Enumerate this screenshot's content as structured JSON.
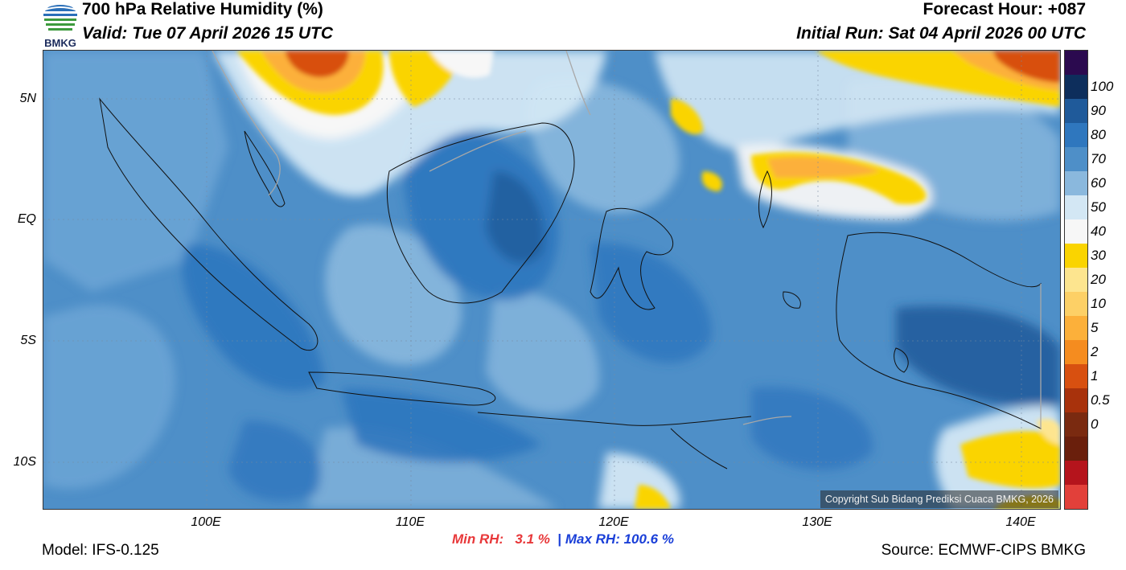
{
  "header": {
    "title": "700 hPa Relative Humidity (%)",
    "valid": "Valid: Tue 07 April 2026 15 UTC",
    "forecast_hour": "Forecast Hour: +087",
    "initial_run": "Initial Run: Sat 04 April 2026 00 UTC",
    "logo_text": "BMKG"
  },
  "axes": {
    "lat_labels": [
      "5N",
      "EQ",
      "5S",
      "10S"
    ],
    "lon_labels": [
      "100E",
      "110E",
      "120E",
      "130E",
      "140E"
    ]
  },
  "stats": {
    "min_label": "Min RH:",
    "min_value": "3.1 %",
    "separator": "|",
    "max_label": "Max RH:",
    "max_value": "100.6 %"
  },
  "footer": {
    "model": "Model: IFS-0.125",
    "source": "Source: ECMWF-CIPS BMKG",
    "copyright": "Copyright Sub Bidang Prediksi Cuaca BMKG, 2026"
  },
  "colorbar": {
    "labels": [
      "100",
      "90",
      "80",
      "70",
      "60",
      "50",
      "40",
      "30",
      "20",
      "10",
      "5",
      "2",
      "1",
      "0.5",
      "0"
    ],
    "colors": [
      "#2b0a4f",
      "#0d2e5c",
      "#1f5a9a",
      "#2f77be",
      "#4e8fc8",
      "#8ab8dd",
      "#d3e7f4",
      "#f7f7f7",
      "#fad400",
      "#fde58f",
      "#fdd066",
      "#fcb03a",
      "#f58c1f",
      "#d85010",
      "#a8320c",
      "#7a2a10",
      "#6a1f0c",
      "#b5141c",
      "#e2403a"
    ]
  },
  "palette": {
    "ocean": "#4e8fc8",
    "moist": "#2f77be",
    "very_moist": "#1f5a9a",
    "light": "#8ab8dd",
    "pale": "#d3e7f4",
    "white": "#f7f7f7",
    "yellow": "#fad400",
    "orange": "#fcb03a",
    "deep_orange": "#d85010"
  }
}
